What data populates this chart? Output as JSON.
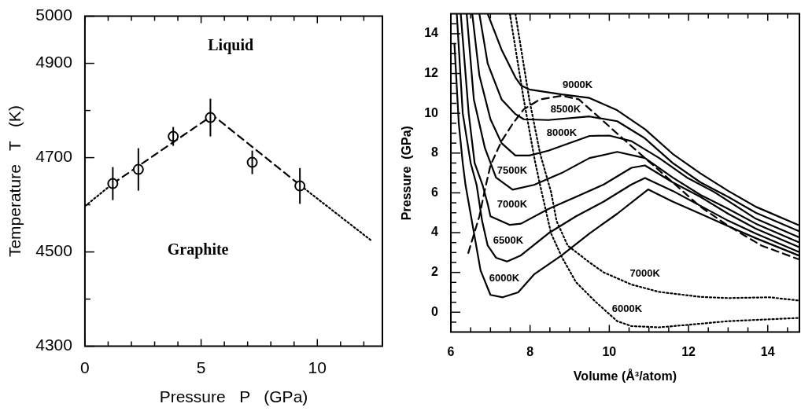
{
  "chart_data": [
    {
      "type": "scatter",
      "xlabel": "Pressure   P   (GPa)",
      "ylabel": "Temperature   T   (K)",
      "xlim": [
        0,
        12.8
      ],
      "ylim": [
        4300,
        5000
      ],
      "grid": false,
      "xticks": [
        0,
        {
          "value": 1,
          "label": null
        },
        {
          "value": 2,
          "label": null
        },
        {
          "value": 3,
          "label": null
        },
        {
          "value": 4,
          "label": null
        },
        5,
        {
          "value": 6,
          "label": null
        },
        {
          "value": 7,
          "label": null
        },
        {
          "value": 8,
          "label": null
        },
        {
          "value": 9,
          "label": null
        },
        10,
        {
          "value": 11,
          "label": null
        },
        {
          "value": 12,
          "label": null
        }
      ],
      "yticks": [
        4300,
        {
          "value": 4400,
          "label": null
        },
        4500,
        {
          "value": 4600,
          "label": null
        },
        4700,
        {
          "value": 4800,
          "label": null
        },
        4900,
        5000
      ],
      "annotations": [
        "Liquid",
        "Graphite"
      ],
      "series": [
        {
          "color": "#000000",
          "marker": "circle",
          "x": [
            1.2,
            2.3,
            3.8,
            5.4,
            7.2,
            9.25
          ],
          "values": [
            4645,
            4675,
            4745,
            4785,
            4690,
            4640
          ],
          "errors": [
            35,
            45,
            20,
            40,
            25,
            38
          ]
        },
        {
          "type": "line",
          "color": "#000000",
          "marker": "none",
          "line_style": "dotted",
          "x": [
            0,
            1.2
          ],
          "values": [
            4597,
            4645
          ]
        },
        {
          "type": "line",
          "color": "#000000",
          "marker": "none",
          "line_style": "dashed",
          "x": [
            1.2,
            5.5,
            9.3
          ],
          "values": [
            4645,
            4790,
            4640
          ]
        },
        {
          "type": "line",
          "color": "#000000",
          "marker": "none",
          "line_style": "dotted",
          "x": [
            9.3,
            12.3
          ],
          "values": [
            4640,
            4525
          ]
        }
      ]
    },
    {
      "type": "line",
      "xlabel": "Volume (Å³/atom)",
      "ylabel": "Pressure  (GPa)",
      "xlim": [
        6,
        14.8
      ],
      "ylim": [
        -1,
        15
      ],
      "grid": false,
      "marker": "none",
      "xticks": [
        6,
        {
          "value": 6.5,
          "label": null
        },
        {
          "value": 7,
          "label": null
        },
        {
          "value": 7.5,
          "label": null
        },
        8,
        {
          "value": 8.5,
          "label": null
        },
        {
          "value": 9,
          "label": null
        },
        {
          "value": 9.5,
          "label": null
        },
        10,
        {
          "value": 10.5,
          "label": null
        },
        {
          "value": 11,
          "label": null
        },
        {
          "value": 11.5,
          "label": null
        },
        12,
        {
          "value": 12.5,
          "label": null
        },
        {
          "value": 13,
          "label": null
        },
        {
          "value": 13.5,
          "label": null
        },
        14,
        {
          "value": 14.5,
          "label": null
        }
      ],
      "yticks": [
        {
          "value": -0.5,
          "label": null
        },
        0,
        {
          "value": 0.5,
          "label": null
        },
        {
          "value": 1,
          "label": null
        },
        {
          "value": 1.5,
          "label": null
        },
        2,
        {
          "value": 2.5,
          "label": null
        },
        {
          "value": 3,
          "label": null
        },
        {
          "value": 3.5,
          "label": null
        },
        4,
        {
          "value": 4.5,
          "label": null
        },
        {
          "value": 5,
          "label": null
        },
        {
          "value": 5.5,
          "label": null
        },
        6,
        {
          "value": 6.5,
          "label": null
        },
        {
          "value": 7,
          "label": null
        },
        {
          "value": 7.5,
          "label": null
        },
        8,
        {
          "value": 8.5,
          "label": null
        },
        {
          "value": 9,
          "label": null
        },
        {
          "value": 9.5,
          "label": null
        },
        10,
        {
          "value": 10.5,
          "label": null
        },
        {
          "value": 11,
          "label": null
        },
        {
          "value": 11.5,
          "label": null
        },
        12,
        {
          "value": 12.5,
          "label": null
        },
        {
          "value": 13,
          "label": null
        },
        {
          "value": 13.5,
          "label": null
        },
        14,
        {
          "value": 14.5,
          "label": null
        }
      ],
      "series": [
        {
          "name": "6000K",
          "color": "#000000",
          "line_style": "solid",
          "x": [
            6.09,
            6.2,
            6.3,
            6.37,
            6.75,
            7.0,
            7.31,
            7.7,
            8.1,
            8.8,
            9.5,
            10.2,
            10.98,
            11.6,
            12.3,
            13.0,
            13.7,
            14.77
          ],
          "values": [
            13.5,
            9.5,
            7.5,
            6.4,
            2.1,
            0.87,
            0.75,
            1.0,
            1.9,
            2.86,
            3.96,
            4.95,
            6.17,
            5.56,
            4.95,
            4.33,
            3.72,
            2.86
          ]
        },
        {
          "name": "6500K",
          "color": "#000000",
          "line_style": "solid",
          "x": [
            6.15,
            6.3,
            6.5,
            6.65,
            6.79,
            6.93,
            7.14,
            7.42,
            7.77,
            8.46,
            9.16,
            9.86,
            10.56,
            10.9,
            11.6,
            12.3,
            13.0,
            13.7,
            14.77
          ],
          "values": [
            15,
            10,
            7.5,
            6.4,
            4.58,
            3.35,
            2.74,
            2.55,
            2.86,
            3.96,
            4.82,
            5.56,
            6.42,
            6.75,
            6.1,
            5.35,
            4.6,
            3.95,
            3.04
          ]
        },
        {
          "name": "7000K",
          "color": "#000000",
          "line_style": "solid",
          "x": [
            6.25,
            6.45,
            6.6,
            6.8,
            6.93,
            7.0,
            7.49,
            7.77,
            8.46,
            9.16,
            9.86,
            10.56,
            10.9,
            11.6,
            12.3,
            13.0,
            13.7,
            14.77
          ],
          "values": [
            15,
            10,
            7.5,
            6.4,
            5.44,
            4.82,
            4.39,
            4.45,
            5.19,
            5.8,
            6.42,
            7.26,
            7.38,
            6.53,
            5.8,
            4.95,
            4.2,
            3.29
          ]
        },
        {
          "name": "7500K",
          "color": "#000000",
          "line_style": "solid",
          "x": [
            6.4,
            6.58,
            6.86,
            7.14,
            7.56,
            8.1,
            8.8,
            9.5,
            10.2,
            10.9,
            11.6,
            12.3,
            13.0,
            13.7,
            14.77
          ],
          "values": [
            15,
            10.7,
            8.25,
            6.77,
            6.16,
            6.4,
            7.0,
            7.75,
            8.06,
            7.75,
            6.77,
            5.9,
            5.2,
            4.45,
            3.53
          ]
        },
        {
          "name": "8000K",
          "color": "#000000",
          "line_style": "solid",
          "x": [
            6.54,
            6.72,
            7.0,
            7.28,
            7.63,
            7.98,
            8.46,
            9.5,
            10.0,
            10.56,
            11.26,
            11.96,
            12.65,
            13.7,
            14.77
          ],
          "values": [
            15,
            11.9,
            9.7,
            8.5,
            7.88,
            7.88,
            8.12,
            8.86,
            8.88,
            8.6,
            7.75,
            6.77,
            6.04,
            4.7,
            3.78
          ]
        },
        {
          "name": "8500K",
          "color": "#000000",
          "line_style": "solid",
          "x": [
            6.72,
            6.93,
            7.28,
            7.63,
            7.84,
            8.46,
            9.5,
            10.2,
            10.9,
            11.6,
            12.3,
            13.0,
            13.7,
            14.77
          ],
          "values": [
            15,
            12.5,
            10.7,
            9.96,
            9.7,
            9.66,
            9.84,
            9.6,
            8.74,
            7.5,
            6.53,
            5.8,
            5.0,
            4.09
          ]
        },
        {
          "name": "9000K",
          "color": "#000000",
          "line_style": "solid",
          "x": [
            6.93,
            7.28,
            7.63,
            7.77,
            7.98,
            8.8,
            9.5,
            10.2,
            10.9,
            11.6,
            12.3,
            13.0,
            13.7,
            14.77
          ],
          "values": [
            15,
            13.2,
            11.8,
            11.4,
            11.2,
            10.95,
            10.77,
            10.15,
            9.2,
            7.96,
            6.98,
            6.1,
            5.3,
            4.39
          ]
        },
        {
          "color": "#000000",
          "line_style": "dashed",
          "x": [
            6.44,
            6.72,
            6.86,
            7.0,
            7.28,
            7.56,
            7.84,
            8.25,
            8.8,
            9.23,
            9.65,
            10.2,
            10.9,
            11.6,
            12.3,
            13.0,
            13.84,
            14.77
          ],
          "values": [
            2.98,
            4.82,
            6.17,
            7.38,
            8.6,
            9.47,
            10.2,
            10.7,
            10.88,
            10.7,
            9.96,
            8.98,
            7.75,
            6.53,
            5.3,
            4.35,
            3.35,
            2.67
          ]
        },
        {
          "name": "7000K",
          "color": "#000000",
          "line_style": "dotted",
          "x": [
            7.63,
            7.98,
            8.25,
            8.53,
            8.67,
            8.95,
            9.51,
            9.86,
            10.56,
            11.26,
            12.3,
            13.0,
            14.05,
            14.77
          ],
          "values": [
            15,
            10.7,
            8.0,
            6.04,
            4.58,
            3.35,
            2.49,
            2.0,
            1.39,
            1.02,
            0.77,
            0.71,
            0.75,
            0.59
          ]
        },
        {
          "name": "6000K",
          "color": "#000000",
          "line_style": "dotted",
          "x": [
            7.49,
            7.84,
            8.12,
            8.25,
            8.53,
            8.81,
            9.16,
            9.65,
            10.2,
            10.56,
            11.26,
            11.96,
            13.0,
            14.77
          ],
          "values": [
            15,
            10.7,
            7.63,
            6.42,
            3.96,
            2.74,
            1.51,
            0.53,
            -0.45,
            -0.7,
            -0.76,
            -0.64,
            -0.45,
            -0.29
          ]
        }
      ]
    }
  ]
}
